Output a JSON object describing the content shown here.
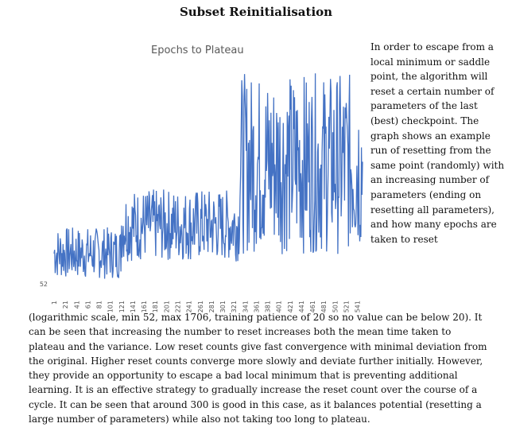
{
  "heading": "Subset Reinitialisation",
  "side_paragraph": "In order to escape from a local minimum or saddle point, the algorithm will reset a certain number of parameters of the last (best) checkpoint. The graph shows an example run of resetting from the same point (randomly) with an increasing number of parameters (ending on resetting all parameters), and how many epochs are taken to reset",
  "bottom_paragraph": "(logarithmic scale, min 52, max 1706, training patience of 20 so no value can be below 20). It can be seen that increasing the number to reset increases both the mean time taken to plateau and the variance. Low reset counts give fast convergence with minimal deviation from the original. Higher reset counts converge more slowly and deviate further initially. However, they provide an opportunity to escape a bad local minimum that is preventing additional learning. It is an effective strategy to gradually increase the reset count over the course of a cycle. It can be seen that around 300 is good in this case, as it balances potential (resetting a large number of parameters) while also not taking too long to plateau.",
  "chart_data": {
    "type": "line",
    "title": "Epochs to Plateau",
    "y_tick_label": "52",
    "y_scale": "log",
    "ylim": [
      52,
      1706
    ],
    "line_color": "#4472C4",
    "x_start": 1,
    "x_end": 550,
    "x_step": 10,
    "x_tick_labels": [
      "1",
      "21",
      "41",
      "61",
      "81",
      "101",
      "121",
      "141",
      "161",
      "181",
      "201",
      "221",
      "241",
      "261",
      "281",
      "301",
      "321",
      "341",
      "361",
      "381",
      "401",
      "421",
      "441",
      "461",
      "481",
      "501",
      "521",
      "541"
    ],
    "segments": [
      {
        "x_from": 1,
        "x_to": 120,
        "low": 60,
        "high": 140
      },
      {
        "x_from": 120,
        "x_to": 330,
        "low": 80,
        "high": 260
      },
      {
        "x_from": 330,
        "x_to": 550,
        "low": 90,
        "high": 1706
      }
    ]
  }
}
